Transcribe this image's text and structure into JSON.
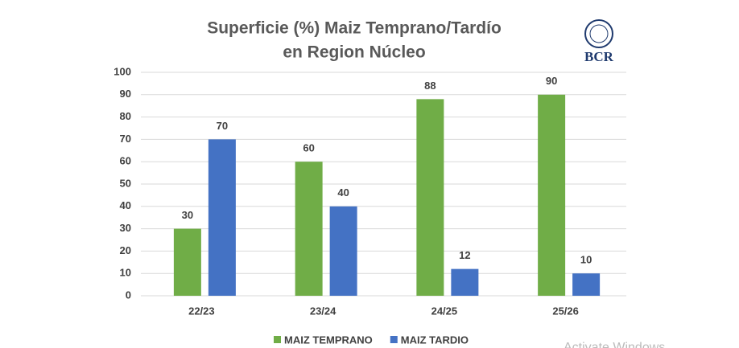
{
  "chart_data": {
    "type": "bar",
    "title": [
      "Superficie (%) Maiz Temprano/Tardío",
      "en Region Núcleo"
    ],
    "categories": [
      "22/23",
      "23/24",
      "24/25",
      "25/26"
    ],
    "series": [
      {
        "name": "MAIZ TEMPRANO",
        "color": "#70ad47",
        "values": [
          30,
          60,
          88,
          90
        ]
      },
      {
        "name": "MAIZ TARDIO",
        "color": "#4472c4",
        "values": [
          70,
          40,
          12,
          10
        ]
      }
    ],
    "ylim": [
      0,
      100
    ],
    "yticks": [
      0,
      10,
      20,
      30,
      40,
      50,
      60,
      70,
      80,
      90,
      100
    ],
    "grid": true,
    "legend": "bottom"
  },
  "logo": "BCR",
  "watermark": "Activate Windows"
}
